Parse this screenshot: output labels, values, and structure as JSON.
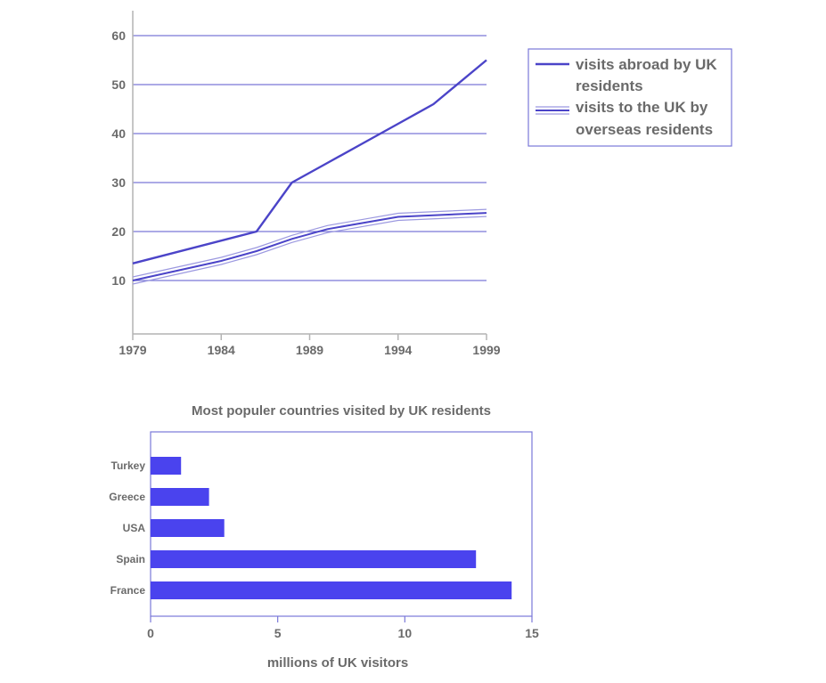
{
  "colors": {
    "accent": "#4b44c8",
    "bar": "#4a43ee",
    "grid": "#7a78d8",
    "axis": "#b4b4b4",
    "text": "#6a6a6a"
  },
  "chart_data": [
    {
      "type": "line",
      "title": "",
      "xlabel": "",
      "ylabel": "",
      "x_ticks": [
        "1979",
        "1984",
        "1989",
        "1994",
        "1999"
      ],
      "y_ticks": [
        "10",
        "20",
        "30",
        "40",
        "50",
        "60"
      ],
      "xlim": [
        1979,
        1999
      ],
      "ylim": [
        0,
        60
      ],
      "grid": "horizontal",
      "legend": {
        "placement": "right",
        "entries": [
          [
            "visits abroad by UK",
            "residents"
          ],
          [
            "visits to the UK by",
            "overseas residents"
          ]
        ]
      },
      "series": [
        {
          "name": "visits abroad by UK residents",
          "x": [
            1979,
            1986,
            1988,
            1990,
            1992,
            1994,
            1996,
            1999
          ],
          "y": [
            13.5,
            20,
            30,
            34,
            38,
            42,
            46,
            55
          ]
        },
        {
          "name": "visits to the UK by overseas residents",
          "x": [
            1979,
            1984,
            1986,
            1988,
            1990,
            1994,
            1999
          ],
          "y": [
            10,
            14,
            16,
            18.5,
            20.5,
            23,
            23.8
          ]
        }
      ]
    },
    {
      "type": "bar",
      "orientation": "horizontal",
      "title": "Most populer countries visited by UK residents",
      "xlabel": "millions of UK visitors",
      "ylabel": "",
      "categories": [
        "Turkey",
        "Greece",
        "USA",
        "Spain",
        "France"
      ],
      "values": [
        1.2,
        2.3,
        2.9,
        12.8,
        14.2
      ],
      "x_ticks": [
        "0",
        "5",
        "10",
        "15"
      ],
      "xlim": [
        0,
        15
      ]
    }
  ]
}
